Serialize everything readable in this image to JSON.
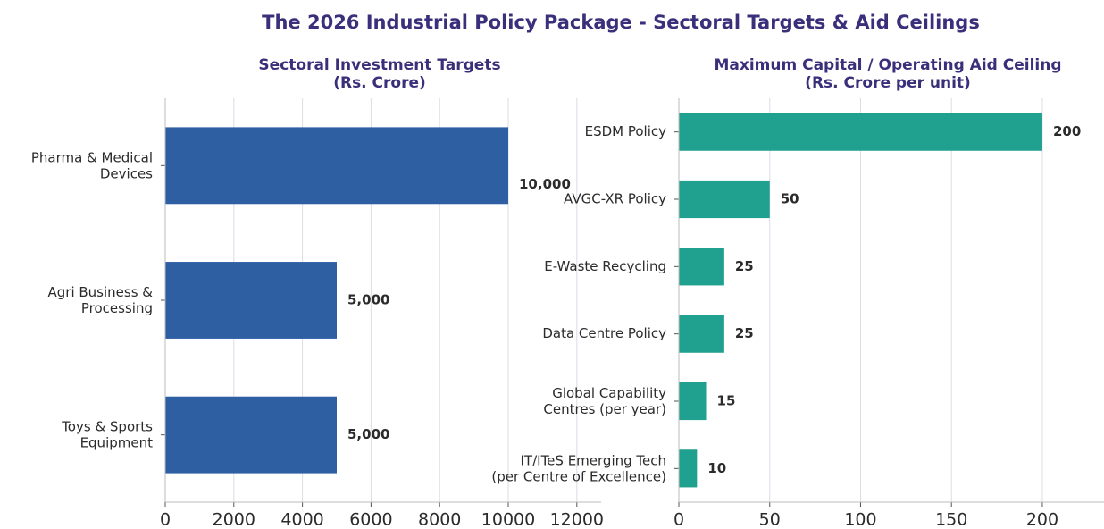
{
  "title": "The 2026 Industrial Policy Package - Sectoral Targets & Aid Ceilings",
  "chart_data": [
    {
      "type": "barh",
      "title": "Sectoral Investment Targets\n(Rs. Crore)",
      "categories": [
        "Pharma & Medical\nDevices",
        "Agri Business &\nProcessing",
        "Toys & Sports\nEquipment"
      ],
      "values": [
        10000,
        5000,
        5000
      ],
      "value_labels": [
        "10,000",
        "5,000",
        "5,000"
      ],
      "color": "#2e5fa3",
      "xlim": [
        0,
        12500
      ],
      "xticks": [
        0,
        2000,
        4000,
        6000,
        8000,
        10000,
        12000
      ],
      "grid": true
    },
    {
      "type": "barh",
      "title": "Maximum Capital / Operating Aid Ceiling\n(Rs. Crore per unit)",
      "categories": [
        "ESDM Policy",
        "AVGC-XR Policy",
        "E-Waste Recycling",
        "Data Centre Policy",
        "Global Capability\nCentres (per year)",
        "IT/ITeS Emerging Tech\n(per Centre of Excellence)"
      ],
      "values": [
        200,
        50,
        25,
        25,
        15,
        10
      ],
      "color": "#20a08e",
      "xlim": [
        0,
        230
      ],
      "xticks": [
        0,
        50,
        100,
        150,
        200
      ],
      "grid": true
    }
  ]
}
